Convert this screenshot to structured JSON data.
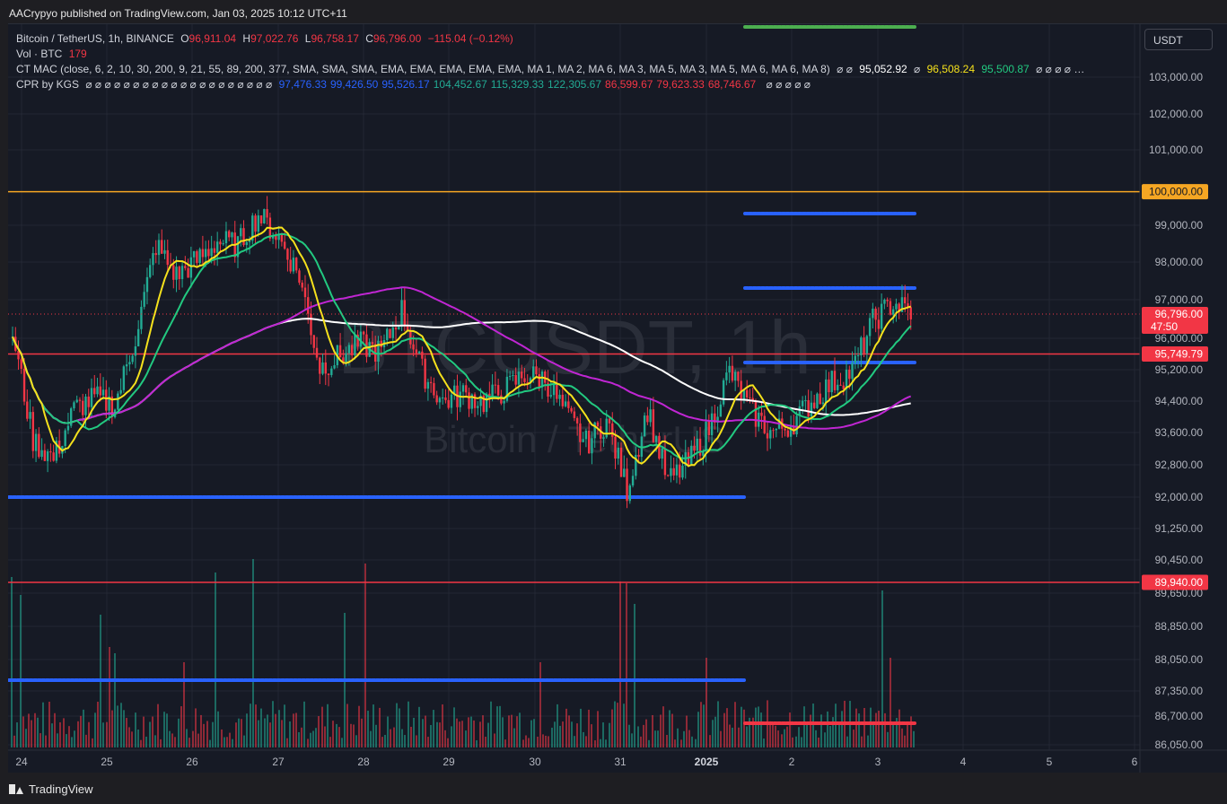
{
  "publisher_line": "AACrypyo published on TradingView.com, Jan 03, 2025 10:12 UTC+11",
  "footer_brand": "TradingView",
  "currency_button": "USDT",
  "legend": {
    "symbol_title": "Bitcoin / TetherUS, 1h, BINANCE",
    "ohlc": {
      "o_label": "O",
      "o": "96,911.04",
      "h_label": "H",
      "h": "97,022.76",
      "l_label": "L",
      "l": "96,758.17",
      "c_label": "C",
      "c": "96,796.00",
      "change": "−115.04 (−0.12%)"
    },
    "vol_label": "Vol · BTC",
    "vol_value": "179",
    "ctmac_label": "CT MAC (close, 6, 2, 10, 30, 200, 9, 21, 55, 89, 200, 377, SMA, SMA, SMA, EMA, EMA, EMA, EMA, EMA, MA 1, MA 2, MA 6, MA 3, MA 5, MA 3, MA 5, MA 6, MA 6, MA 8)",
    "ctmac_null": "⌀ ⌀",
    "ctmac_v1": "95,052.92",
    "ctmac_null2": "⌀",
    "ctmac_v2": "96,508.24",
    "ctmac_v3": "95,500.87",
    "ctmac_tail": "⌀ ⌀ ⌀ ⌀ …",
    "cpr_label": "CPR by KGS",
    "cpr_nulls": "⌀ ⌀ ⌀ ⌀ ⌀ ⌀ ⌀ ⌀ ⌀ ⌀ ⌀ ⌀ ⌀ ⌀ ⌀ ⌀ ⌀ ⌀ ⌀ ⌀",
    "cpr_values": [
      {
        "v": "97,476.33",
        "color": "#2962ff"
      },
      {
        "v": "99,426.50",
        "color": "#2962ff"
      },
      {
        "v": "95,526.17",
        "color": "#2962ff"
      },
      {
        "v": "104,452.67",
        "color": "#22ab94"
      },
      {
        "v": "115,329.33",
        "color": "#22ab94"
      },
      {
        "v": "122,305.67",
        "color": "#22ab94"
      },
      {
        "v": "86,599.67",
        "color": "#f23645"
      },
      {
        "v": "79,623.33",
        "color": "#f23645"
      },
      {
        "v": "68,746.67",
        "color": "#f23645"
      }
    ],
    "cpr_tail": "⌀ ⌀ ⌀ ⌀ ⌀"
  },
  "chart_data": {
    "type": "candlestick",
    "title": "",
    "watermark": "BTCUSDT, 1h",
    "watermark_sub": "Bitcoin / TetherUS",
    "y_tick_labels": [
      "103,000.00",
      "102,000.00",
      "101,000.00",
      "99,000.00",
      "98,000.00",
      "97,000.00",
      "96,000.00",
      "95,200.00",
      "94,400.00",
      "93,600.00",
      "92,800.00",
      "92,000.00",
      "91,250.00",
      "90,450.00",
      "89,650.00",
      "88,850.00",
      "88,050.00",
      "87,350.00",
      "86,700.00",
      "86,050.00"
    ],
    "x_tick_labels": [
      "24",
      "25",
      "26",
      "27",
      "28",
      "29",
      "30",
      "31",
      "2025",
      "2",
      "3",
      "4",
      "5",
      "6"
    ],
    "price_scale": {
      "log": false,
      "upper": {
        "from": 92000,
        "to": 103000
      },
      "lower_nonlinear": true
    },
    "level_lines": [
      {
        "price": 100000,
        "label": "100,000.00",
        "color": "#f5a623"
      },
      {
        "price": 95749.79,
        "label": "95,749.79",
        "color": "#f23645"
      },
      {
        "price": 89940,
        "label": "89,940.00",
        "color": "#f23645"
      }
    ],
    "last_price": {
      "label": "96,796.00",
      "countdown": "47:50",
      "color": "#f23645"
    },
    "cpr_levels": [
      {
        "price": 99426.5,
        "color": "#2962ff",
        "from": "2025-01-01",
        "to": "2025-01-03"
      },
      {
        "price": 97476.33,
        "color": "#2962ff",
        "from": "2025-01-01",
        "to": "2025-01-03"
      },
      {
        "price": 95526.17,
        "color": "#2962ff",
        "from": "2025-01-01",
        "to": "2025-01-03"
      },
      {
        "price": 92000,
        "color": "#2962ff",
        "from": "2024-12-24",
        "to": "2025-01-01"
      },
      {
        "price": 88050,
        "color": "#2962ff",
        "from": "2024-12-24",
        "to": "2025-01-01"
      },
      {
        "price": 86599.67,
        "color": "#f23645",
        "from": "2025-01-01",
        "to": "2025-01-03"
      },
      {
        "price": 103000,
        "color": "#22ab94",
        "from": "2025-01-01",
        "to": "2025-01-03"
      }
    ],
    "close_path": [
      [
        "2024-12-24",
        96300
      ],
      [
        "2024-12-24",
        93500
      ],
      [
        "2024-12-24",
        93000
      ],
      [
        "2024-12-24",
        94300
      ],
      [
        "2024-12-24",
        94600
      ],
      [
        "2024-12-25",
        94400
      ],
      [
        "2024-12-25",
        96200
      ],
      [
        "2024-12-25",
        98600
      ],
      [
        "2024-12-25",
        97800
      ],
      [
        "2024-12-25",
        98200
      ],
      [
        "2024-12-26",
        98700
      ],
      [
        "2024-12-26",
        98600
      ],
      [
        "2024-12-26",
        99400
      ],
      [
        "2024-12-26",
        98800
      ],
      [
        "2024-12-27",
        97800
      ],
      [
        "2024-12-27",
        95400
      ],
      [
        "2024-12-27",
        95700
      ],
      [
        "2024-12-27",
        96000
      ],
      [
        "2024-12-27",
        95800
      ],
      [
        "2024-12-28",
        96900
      ],
      [
        "2024-12-28",
        95300
      ],
      [
        "2024-12-28",
        94500
      ],
      [
        "2024-12-29",
        94700
      ],
      [
        "2024-12-29",
        94500
      ],
      [
        "2024-12-29",
        94800
      ],
      [
        "2024-12-30",
        95200
      ],
      [
        "2024-12-30",
        95100
      ],
      [
        "2024-12-30",
        94200
      ],
      [
        "2024-12-30",
        93400
      ],
      [
        "2024-12-31",
        94000
      ],
      [
        "2024-12-31",
        92200
      ],
      [
        "2024-12-31",
        94300
      ],
      [
        "2024-12-31",
        92400
      ],
      [
        "2025-01-01",
        92900
      ],
      [
        "2025-01-01",
        93800
      ],
      [
        "2025-01-01",
        95300
      ],
      [
        "2025-01-01",
        94300
      ],
      [
        "2025-01-01",
        93700
      ],
      [
        "2025-01-02",
        93900
      ],
      [
        "2025-01-02",
        94500
      ],
      [
        "2025-01-02",
        95000
      ],
      [
        "2025-01-02",
        95300
      ],
      [
        "2025-01-03",
        96600
      ],
      [
        "2025-01-03",
        97100
      ],
      [
        "2025-01-03",
        96796
      ]
    ],
    "moving_averages": [
      {
        "color": "#ffffff"
      },
      {
        "color": "#c026d3"
      },
      {
        "color": "#22c980"
      },
      {
        "color": "#f5e11c"
      }
    ],
    "volume": {
      "unit": "BTC",
      "last": 179,
      "note": "volume histogram, green = up bar, red = down bar"
    },
    "grid": true,
    "legend_position": "top-left"
  }
}
